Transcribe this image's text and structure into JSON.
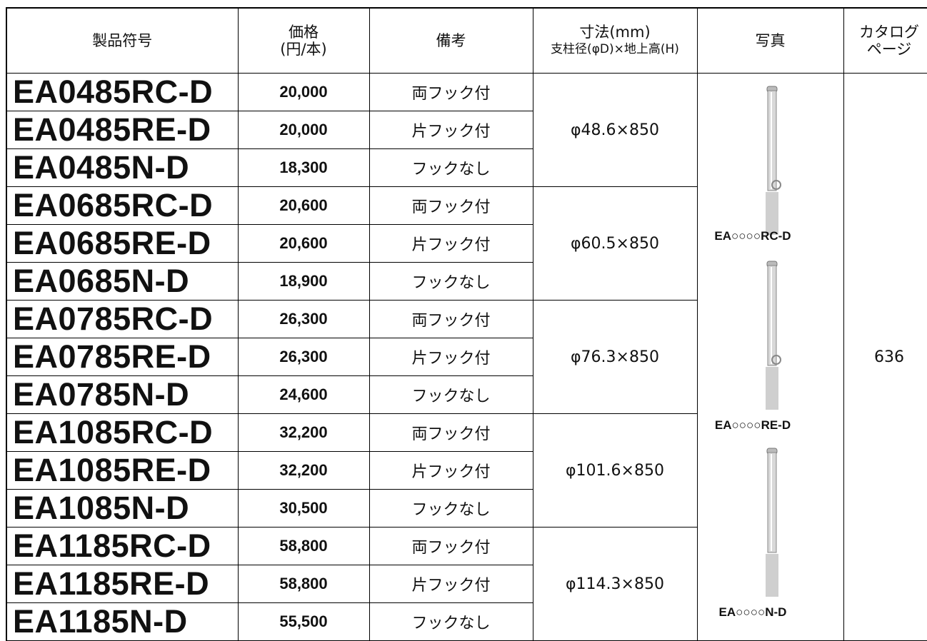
{
  "table": {
    "header": [
      [
        "製品符号"
      ],
      [
        "価格",
        "(円/本)"
      ],
      [
        "備考"
      ],
      [
        "寸法(mm)",
        "支柱径(φD)×地上高(H)"
      ],
      [
        "写真"
      ],
      [
        "カタログ",
        "ページ"
      ]
    ],
    "rows": [
      [
        "EA0485RC-D",
        "20,000",
        "両フック付"
      ],
      [
        "EA0485RE-D",
        "20,000",
        "片フック付"
      ],
      [
        "EA0485N-D",
        "18,300",
        "フックなし"
      ],
      [
        "EA0685RC-D",
        "20,600",
        "両フック付"
      ],
      [
        "EA0685RE-D",
        "20,600",
        "片フック付"
      ],
      [
        "EA0685N-D",
        "18,900",
        "フックなし"
      ],
      [
        "EA0785RC-D",
        "26,300",
        "両フック付"
      ],
      [
        "EA0785RE-D",
        "26,300",
        "片フック付"
      ],
      [
        "EA0785N-D",
        "24,600",
        "フックなし"
      ],
      [
        "EA1085RC-D",
        "32,200",
        "両フック付"
      ],
      [
        "EA1085RE-D",
        "32,200",
        "片フック付"
      ],
      [
        "EA1085N-D",
        "30,500",
        "フックなし"
      ],
      [
        "EA1185RC-D",
        "58,800",
        "両フック付"
      ],
      [
        "EA1185RE-D",
        "58,800",
        "片フック付"
      ],
      [
        "EA1185N-D",
        "55,500",
        "フックなし"
      ]
    ],
    "dimensions": [
      "φ48.6×850",
      "φ60.5×850",
      "φ76.3×850",
      "φ101.6×850",
      "φ114.3×850"
    ],
    "photo_labels": [
      "EA○○○○RC-D",
      "EA○○○○RE-D",
      "EA○○○○N-D"
    ],
    "catalog_page": "636"
  }
}
